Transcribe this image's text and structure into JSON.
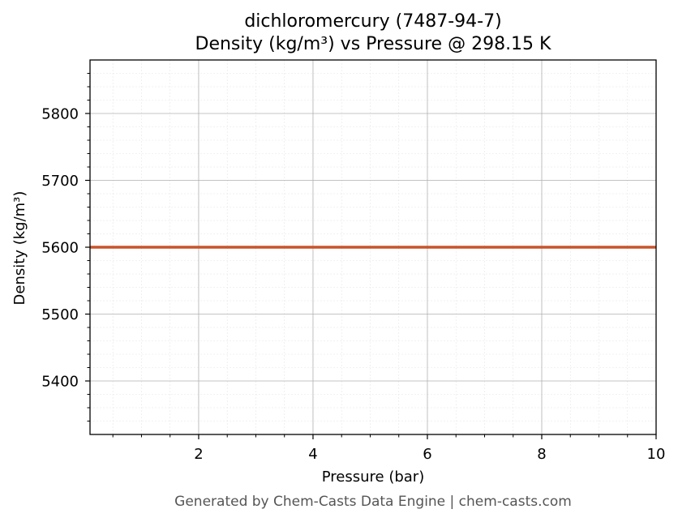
{
  "chart_data": {
    "type": "line",
    "title_line1": "dichloromercury (7487-94-7)",
    "title_line2": "Density (kg/m³) vs Pressure @ 298.15 K",
    "xlabel": "Pressure (bar)",
    "ylabel": "Density (kg/m³)",
    "xlim": [
      0.1,
      10
    ],
    "ylim": [
      5320,
      5880
    ],
    "xticks": [
      2,
      4,
      6,
      8,
      10
    ],
    "yticks": [
      5400,
      5500,
      5600,
      5700,
      5800
    ],
    "grid": true,
    "series": [
      {
        "color": "#c8542a",
        "x": [
          0.1,
          10
        ],
        "y": [
          5600,
          5600
        ]
      }
    ]
  },
  "footer": "Generated by Chem-Casts Data Engine | chem-casts.com"
}
